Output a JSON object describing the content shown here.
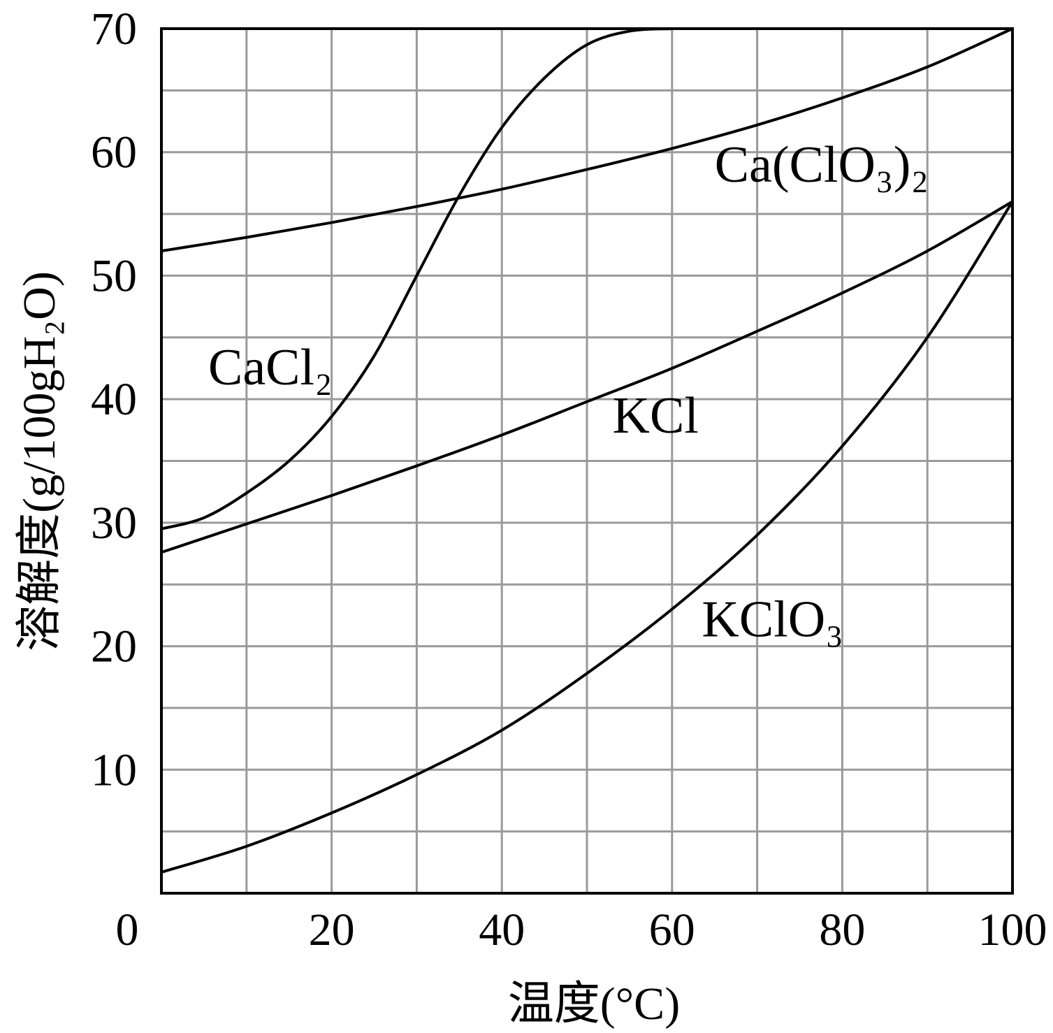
{
  "chart_data": {
    "type": "line",
    "title": "",
    "xlabel": "温度(°C)",
    "ylabel": "溶解度(g/100gH₂O)",
    "xlim": [
      0,
      100
    ],
    "ylim": [
      0,
      70
    ],
    "x_ticks": [
      "0",
      "20",
      "40",
      "60",
      "80",
      "100"
    ],
    "y_ticks": [
      "10",
      "20",
      "30",
      "40",
      "50",
      "60",
      "70"
    ],
    "grid": true,
    "series": [
      {
        "name": "Ca(ClO₃)₂",
        "x": [
          0,
          10,
          20,
          30,
          40,
          50,
          60,
          70,
          80,
          90,
          100
        ],
        "y": [
          52,
          53.1,
          54.3,
          55.6,
          57.0,
          58.6,
          60.3,
          62.2,
          64.4,
          66.9,
          70.0
        ]
      },
      {
        "name": "CaCl₂",
        "x": [
          0,
          5,
          10,
          15,
          20,
          25,
          30,
          35,
          40,
          45,
          50,
          55,
          60
        ],
        "y": [
          29.5,
          30.4,
          32.4,
          35.0,
          38.6,
          43.5,
          50.0,
          56.5,
          62.0,
          66.0,
          68.7,
          69.8,
          70.0
        ]
      },
      {
        "name": "KCl",
        "x": [
          0,
          10,
          20,
          30,
          40,
          50,
          60,
          70,
          80,
          90,
          100
        ],
        "y": [
          27.6,
          29.9,
          32.2,
          34.6,
          37.1,
          39.8,
          42.5,
          45.5,
          48.6,
          52.0,
          56.0
        ]
      },
      {
        "name": "KClO₃",
        "x": [
          0,
          10,
          20,
          30,
          40,
          50,
          60,
          70,
          80,
          90,
          100
        ],
        "y": [
          1.7,
          3.8,
          6.5,
          9.6,
          13.2,
          17.8,
          23.0,
          29.0,
          36.2,
          45.0,
          56.0
        ]
      }
    ]
  }
}
